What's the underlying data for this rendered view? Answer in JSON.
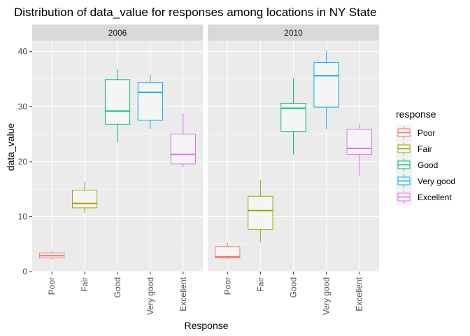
{
  "chart_data": {
    "type": "boxplot",
    "title": "Distribution of data_value for responses among locations in NY State",
    "xlabel": "Response",
    "ylabel": "data_value",
    "ylim": [
      0,
      42
    ],
    "yticks": [
      0,
      10,
      20,
      30,
      40
    ],
    "categories": [
      "Poor",
      "Fair",
      "Good",
      "Very good",
      "Excellent"
    ],
    "facets": [
      {
        "label": "2006",
        "boxes": [
          {
            "category": "Poor",
            "min": 2.2,
            "q1": 2.5,
            "median": 2.9,
            "q3": 3.4,
            "max": 3.8
          },
          {
            "category": "Fair",
            "min": 10.7,
            "q1": 11.6,
            "median": 12.4,
            "q3": 14.8,
            "max": 16.3
          },
          {
            "category": "Good",
            "min": 23.5,
            "q1": 26.8,
            "median": 29.2,
            "q3": 34.9,
            "max": 36.8
          },
          {
            "category": "Very good",
            "min": 25.9,
            "q1": 27.5,
            "median": 32.6,
            "q3": 34.4,
            "max": 35.8
          },
          {
            "category": "Excellent",
            "min": 19.0,
            "q1": 19.6,
            "median": 21.3,
            "q3": 25.0,
            "max": 28.8
          }
        ]
      },
      {
        "label": "2010",
        "boxes": [
          {
            "category": "Poor",
            "min": 2.3,
            "q1": 2.5,
            "median": 2.7,
            "q3": 4.5,
            "max": 5.3
          },
          {
            "category": "Fair",
            "min": 5.3,
            "q1": 7.7,
            "median": 11.1,
            "q3": 13.7,
            "max": 16.7
          },
          {
            "category": "Good",
            "min": 21.3,
            "q1": 25.5,
            "median": 29.7,
            "q3": 30.6,
            "max": 35.2
          },
          {
            "category": "Very good",
            "min": 25.9,
            "q1": 29.9,
            "median": 35.6,
            "q3": 38.0,
            "max": 40.2
          },
          {
            "category": "Excellent",
            "min": 17.3,
            "q1": 21.3,
            "median": 22.4,
            "q3": 25.9,
            "max": 26.9
          }
        ]
      }
    ],
    "legend": {
      "title": "response",
      "placement": "right",
      "entries": [
        "Poor",
        "Fair",
        "Good",
        "Very good",
        "Excellent"
      ]
    },
    "colors": {
      "Poor": "#F8766D",
      "Fair": "#A3A500",
      "Good": "#00BF7D",
      "Very good": "#00B0F6",
      "Excellent": "#E76BF3"
    },
    "grid": true
  }
}
